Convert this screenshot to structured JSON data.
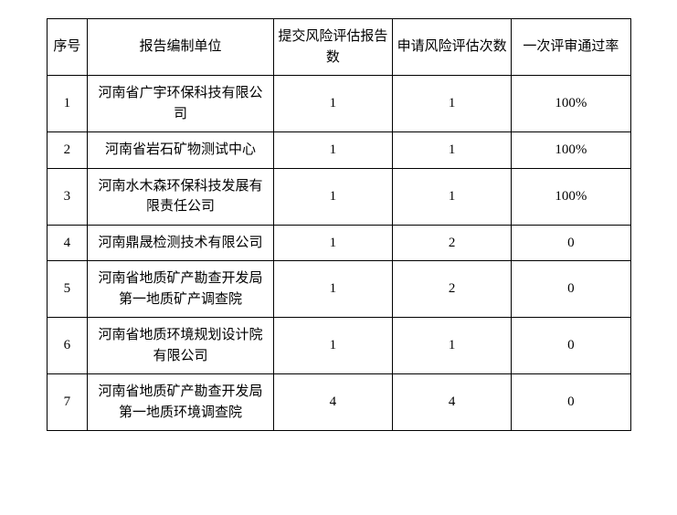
{
  "table": {
    "headers": {
      "seq": "序号",
      "org": "报告编制单位",
      "submit": "提交风险评估报告数",
      "apply": "申请风险评估次数",
      "pass": "一次评审通过率"
    },
    "rows": [
      {
        "seq": "1",
        "org": "河南省广宇环保科技有限公司",
        "submit": "1",
        "apply": "1",
        "pass": "100%"
      },
      {
        "seq": "2",
        "org": "河南省岩石矿物测试中心",
        "submit": "1",
        "apply": "1",
        "pass": "100%"
      },
      {
        "seq": "3",
        "org": "河南水木森环保科技发展有限责任公司",
        "submit": "1",
        "apply": "1",
        "pass": "100%"
      },
      {
        "seq": "4",
        "org": "河南鼎晟检测技术有限公司",
        "submit": "1",
        "apply": "2",
        "pass": "0"
      },
      {
        "seq": "5",
        "org": "河南省地质矿产勘查开发局第一地质矿产调查院",
        "submit": "1",
        "apply": "2",
        "pass": "0"
      },
      {
        "seq": "6",
        "org": "河南省地质环境规划设计院有限公司",
        "submit": "1",
        "apply": "1",
        "pass": "0"
      },
      {
        "seq": "7",
        "org": "河南省地质矿产勘查开发局第一地质环境调查院",
        "submit": "4",
        "apply": "4",
        "pass": "0"
      }
    ],
    "style": {
      "border_color": "#000000",
      "background_color": "#ffffff",
      "font_size": 15,
      "font_family": "SimSun",
      "col_widths": {
        "seq": 44,
        "org": 200,
        "submit": 128,
        "apply": 128,
        "pass": 128
      },
      "alignment": "center"
    }
  }
}
